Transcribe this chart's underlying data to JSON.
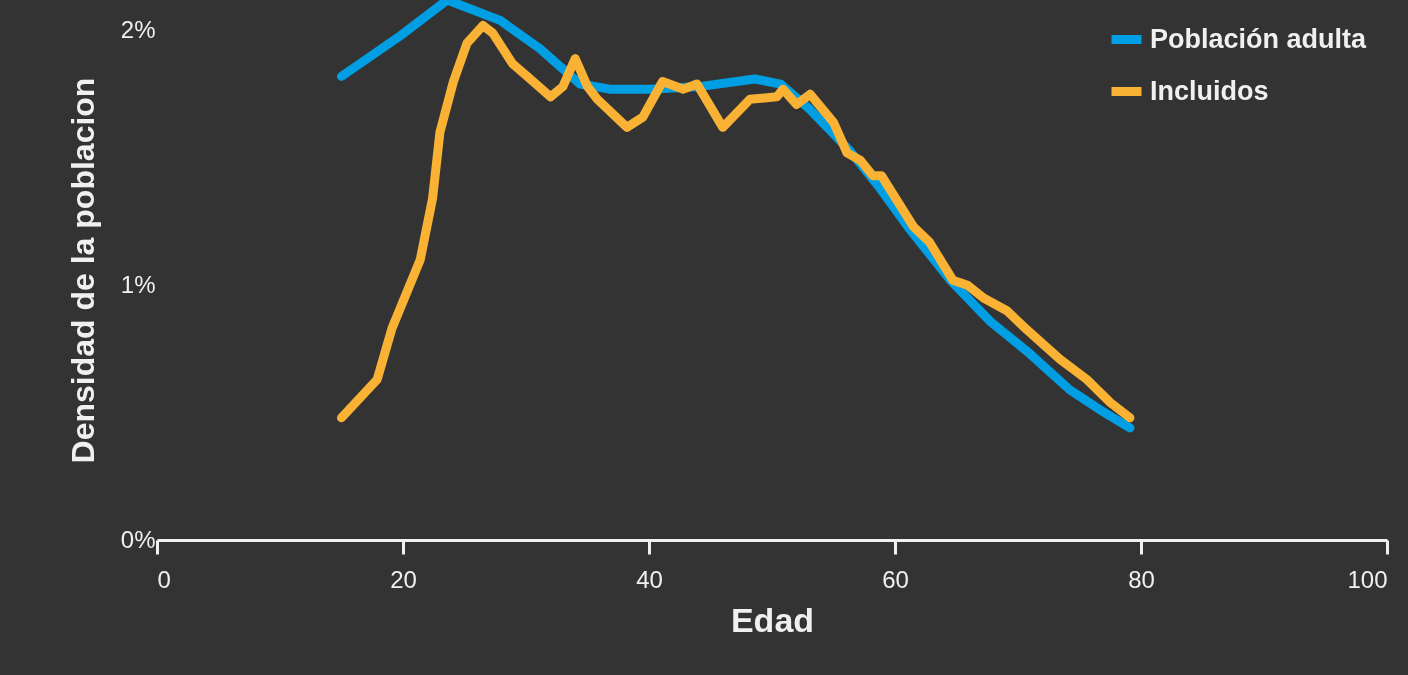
{
  "chart_data": {
    "type": "line",
    "xlabel": "Edad",
    "ylabel": "Densidad  de la poblacion",
    "xlim": [
      0,
      100
    ],
    "xticks": [
      0,
      20,
      40,
      60,
      80,
      100
    ],
    "ylim": [
      0,
      2.12
    ],
    "yticks": [
      {
        "value": 0,
        "label": "0%"
      },
      {
        "value": 1,
        "label": "1%"
      },
      {
        "value": 2,
        "label": "2%"
      }
    ],
    "legend": "top right",
    "grid": false,
    "marker": "none",
    "line_style": "solid",
    "series": [
      {
        "name": "Población adulta",
        "color": "#009fe3",
        "x": [
          15.0,
          19.8,
          23.6,
          27.9,
          31.1,
          34.4,
          36.8,
          40.1,
          44.1,
          48.6,
          50.7,
          53.1,
          56.3,
          58.8,
          61.2,
          64.5,
          67.7,
          71.0,
          74.2,
          76.7,
          79.1
        ],
        "values": [
          1.82,
          1.98,
          2.12,
          2.04,
          1.93,
          1.79,
          1.77,
          1.77,
          1.78,
          1.81,
          1.79,
          1.69,
          1.53,
          1.38,
          1.22,
          1.02,
          0.86,
          0.73,
          0.59,
          0.51,
          0.44
        ]
      },
      {
        "name": "Incluidos",
        "color": "#f9b233",
        "x": [
          15.0,
          17.9,
          19.1,
          21.4,
          22.4,
          23.0,
          24.1,
          25.2,
          26.5,
          27.3,
          28.9,
          30.1,
          32.0,
          33.0,
          34.0,
          35.0,
          35.8,
          38.2,
          39.5,
          41.1,
          42.8,
          43.9,
          46.0,
          48.2,
          50.4,
          50.9,
          52.0,
          53.1,
          55.0,
          56.1,
          57.2,
          58.2,
          58.9,
          61.5,
          62.8,
          64.7,
          65.9,
          67.2,
          69.1,
          70.4,
          73.4,
          75.6,
          77.5,
          79.1
        ],
        "values": [
          0.48,
          0.63,
          0.83,
          1.1,
          1.34,
          1.6,
          1.8,
          1.95,
          2.02,
          1.99,
          1.87,
          1.82,
          1.74,
          1.78,
          1.89,
          1.78,
          1.73,
          1.62,
          1.66,
          1.8,
          1.77,
          1.79,
          1.62,
          1.73,
          1.74,
          1.77,
          1.71,
          1.75,
          1.64,
          1.52,
          1.49,
          1.43,
          1.43,
          1.23,
          1.17,
          1.02,
          1.0,
          0.95,
          0.9,
          0.84,
          0.71,
          0.63,
          0.54,
          0.48
        ]
      }
    ]
  }
}
